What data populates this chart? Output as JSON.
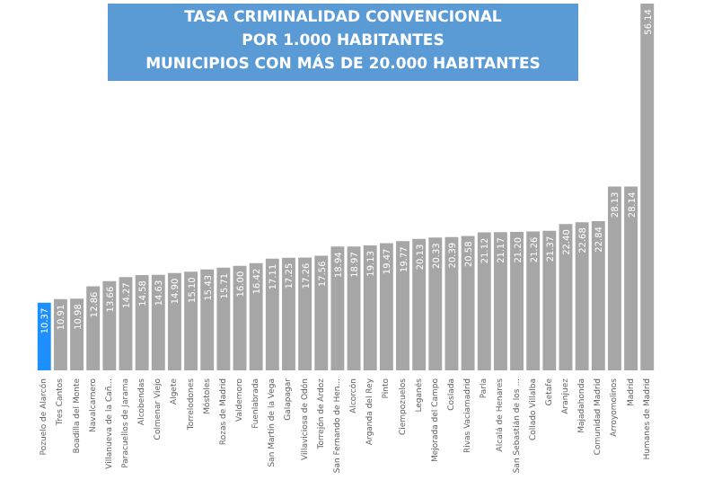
{
  "chart_data": {
    "type": "bar",
    "title": "TASA CRIMINALIDAD CONVENCIONAL POR 1.000 HABITANTES",
    "subtitle": "MUNICIPIOS CON MÁS DE 20.000 HABITANTES",
    "categories": [
      "Pozuelo de Alarcón",
      "Tres Cantos",
      "Boadilla del Monte",
      "Navalcarnero",
      "Villanueva de la Cañ...",
      "Paracuellos de Jarama",
      "Alcobendas",
      "Colmenar Viejo",
      "Algete",
      "Torrelodones",
      "Móstoles",
      "Rozas de Madrid",
      "Valdemoro",
      "Fuenlabrada",
      "San Martín de la Vega",
      "Galapagar",
      "Villaviciosa de Odón",
      "Torrejón de Ardoz",
      "San Fernando de Hen...",
      "Alcorcón",
      "Arganda del Rey",
      "Pinto",
      "Ciempozuelos",
      "Leganés",
      "Mejorada del Campo",
      "Coslada",
      "Rivas Vaciamadrid",
      "Parla",
      "Alcalá de Henares",
      "San Sebastián de los ...",
      "Collado Villalba",
      "Getafe",
      "Aranjuez",
      "Majadahonda",
      "Comunidad Madrid",
      "Arroyomolinos",
      "Madrid",
      "Humanes de Madrid"
    ],
    "values": [
      10.37,
      10.91,
      10.98,
      12.86,
      13.66,
      14.27,
      14.58,
      14.63,
      14.9,
      15.1,
      15.43,
      15.71,
      16.0,
      16.42,
      17.11,
      17.25,
      17.26,
      17.56,
      18.94,
      18.97,
      19.13,
      19.47,
      19.77,
      20.13,
      20.33,
      20.39,
      20.58,
      21.12,
      21.17,
      21.2,
      21.26,
      21.37,
      22.4,
      22.68,
      22.84,
      28.13,
      28.14,
      56.14
    ],
    "value_labels": [
      "10.37",
      "10.91",
      "10.98",
      "12.86",
      "13.66",
      "14.27",
      "14.58",
      "14.63",
      "14.90",
      "15.10",
      "15.43",
      "15.71",
      "16.00",
      "16.42",
      "17.11",
      "17.25",
      "17.26",
      "17.56",
      "18.94",
      "18.97",
      "19.13",
      "19.47",
      "19.77",
      "20.13",
      "20.33",
      "20.39",
      "20.58",
      "21.12",
      "21.17",
      "21.20",
      "21.26",
      "21.37",
      "22.40",
      "22.68",
      "22.84",
      "28.13",
      "28.14",
      "56.14"
    ],
    "colors": [
      "#1e8fff",
      "#a6a6a6",
      "#a6a6a6",
      "#a6a6a6",
      "#a6a6a6",
      "#a6a6a6",
      "#a6a6a6",
      "#a6a6a6",
      "#a6a6a6",
      "#a6a6a6",
      "#a6a6a6",
      "#a6a6a6",
      "#a6a6a6",
      "#a6a6a6",
      "#a6a6a6",
      "#a6a6a6",
      "#a6a6a6",
      "#a6a6a6",
      "#a6a6a6",
      "#a6a6a6",
      "#a6a6a6",
      "#a6a6a6",
      "#a6a6a6",
      "#a6a6a6",
      "#a6a6a6",
      "#a6a6a6",
      "#a6a6a6",
      "#a6a6a6",
      "#a6a6a6",
      "#a6a6a6",
      "#a6a6a6",
      "#a6a6a6",
      "#a6a6a6",
      "#a6a6a6",
      "#a6a6a6",
      "#a6a6a6",
      "#a6a6a6",
      "#a6a6a6"
    ],
    "grid": false
  }
}
